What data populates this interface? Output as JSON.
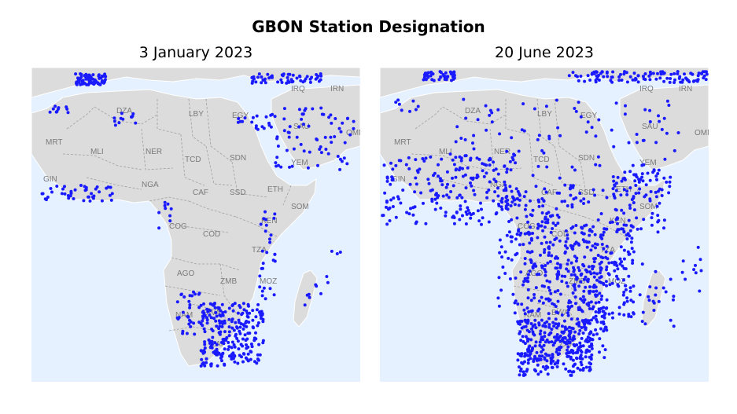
{
  "title": "GBON Station Designation",
  "panels": [
    {
      "subtitle": "3 January 2023",
      "density": "sparse"
    },
    {
      "subtitle": "20 June 2023",
      "density": "dense"
    }
  ],
  "country_labels": [
    "DZA",
    "LBY",
    "EGY",
    "IRQ",
    "IRN",
    "SAU",
    "MRT",
    "MLI",
    "NER",
    "TCD",
    "SDN",
    "YEM",
    "GIN",
    "NGA",
    "CAF",
    "SSD",
    "ETH",
    "SOM",
    "COG",
    "COD",
    "KEN",
    "TZA",
    "AGO",
    "ZMB",
    "MOZ",
    "NAM",
    "BWA",
    "ZAF",
    "OMN"
  ],
  "colors": {
    "ocean": "#e6f1ff",
    "land": "#dcdcdc",
    "border": "#a0a0a0",
    "station": "#1a1aff"
  }
}
